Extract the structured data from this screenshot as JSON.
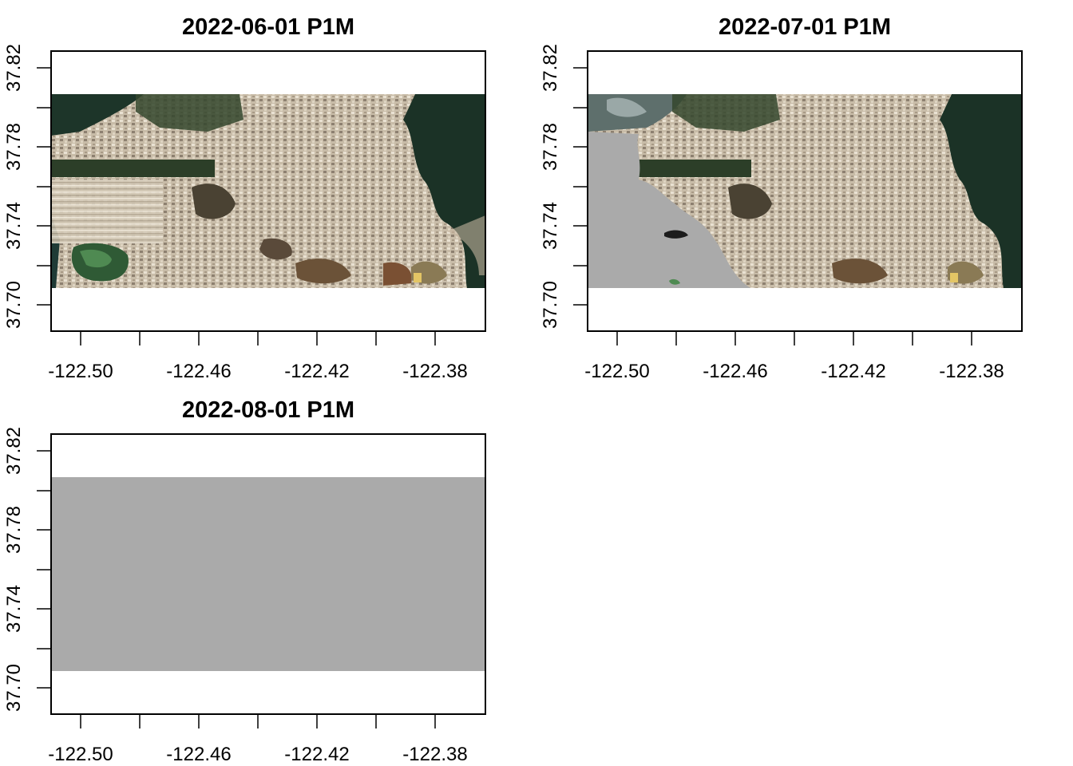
{
  "panels": [
    {
      "title": "2022-06-01 P1M",
      "image": "satellite-rgb-composite",
      "x_ticks": [
        "-122.50",
        "-122.46",
        "-122.42",
        "-122.38"
      ],
      "y_ticks": [
        "37.70",
        "37.74",
        "37.78",
        "37.82"
      ],
      "cloud_mask": "none"
    },
    {
      "title": "2022-07-01 P1M",
      "image": "satellite-rgb-composite",
      "x_ticks": [
        "-122.50",
        "-122.46",
        "-122.42",
        "-122.38"
      ],
      "y_ticks": [
        "37.70",
        "37.74",
        "37.78",
        "37.82"
      ],
      "cloud_mask": "western-portion-gray"
    },
    {
      "title": "2022-08-01 P1M",
      "image": "no-data-gray",
      "x_ticks": [
        "-122.50",
        "-122.46",
        "-122.42",
        "-122.38"
      ],
      "y_ticks": [
        "37.70",
        "37.74",
        "37.78",
        "37.82"
      ],
      "cloud_mask": "full"
    }
  ],
  "axes": {
    "x_range": [
      -122.51,
      -122.363
    ],
    "y_range": [
      37.682,
      37.839
    ],
    "raster_extent": {
      "x": [
        -122.51,
        -122.363
      ],
      "y": [
        37.709,
        37.805
      ]
    },
    "minor_x_ticks": [
      -122.48,
      -122.44,
      -122.4
    ]
  },
  "colors": {
    "nodata_gray": "#aaaaaa",
    "water_dark": "#1d3529",
    "urban_light": "#c9bfae",
    "park_green": "#2f4a2c"
  }
}
